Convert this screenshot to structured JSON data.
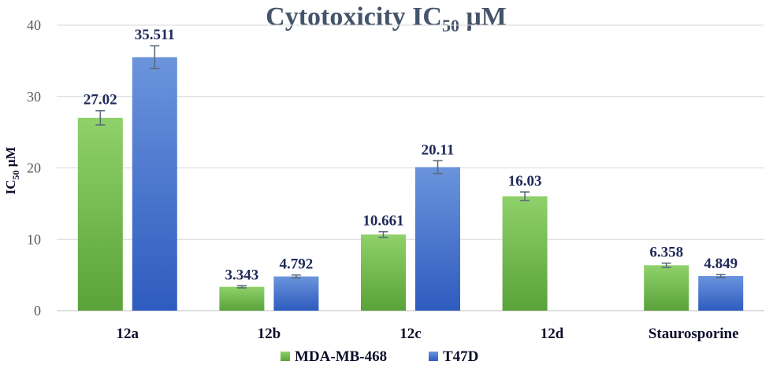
{
  "chart_data": {
    "type": "bar",
    "title_main": "Cytotoxicity IC",
    "title_subscript": "50",
    "title_suffix": " μM",
    "ylabel_main": "IC",
    "ylabel_subscript": "50",
    "ylabel_suffix": " μM",
    "xlabel": "",
    "ylim": [
      0,
      40
    ],
    "yticks": [
      "0",
      "10",
      "20",
      "30",
      "40"
    ],
    "ytick_values": [
      0,
      10,
      20,
      30,
      40
    ],
    "grid": true,
    "legend_position": "bottom-center",
    "categories": [
      "12a",
      "12b",
      "12c",
      "12d",
      "Staurosporine"
    ],
    "series": [
      {
        "name": "MDA-MB-468",
        "color_top": "#8fd16a",
        "color_bottom": "#5aa23a",
        "values": [
          27.02,
          3.343,
          10.661,
          16.03,
          6.358
        ],
        "labels": [
          "27.02",
          "3.343",
          "10.661",
          "16.03",
          "6.358"
        ],
        "errors": [
          1.0,
          0.15,
          0.4,
          0.6,
          0.3
        ]
      },
      {
        "name": "T47D",
        "color_top": "#6b94dc",
        "color_bottom": "#2e5bbf",
        "values": [
          35.511,
          4.792,
          20.11,
          null,
          4.849
        ],
        "labels": [
          "35.511",
          "4.792",
          "20.11",
          "",
          "4.849"
        ],
        "errors": [
          1.6,
          0.2,
          0.9,
          null,
          0.2
        ]
      }
    ]
  }
}
